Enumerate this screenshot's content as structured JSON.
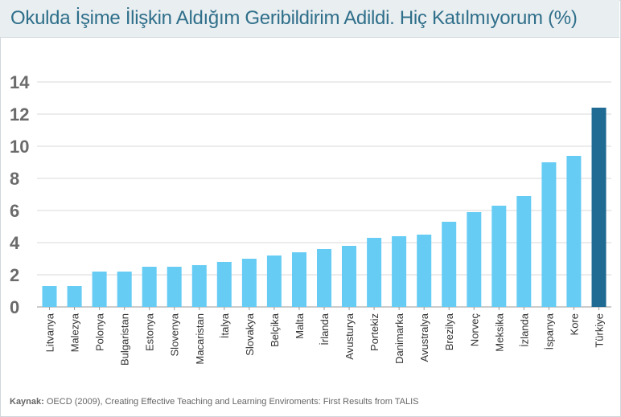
{
  "chart_data": {
    "type": "bar",
    "title": "Okulda İşime İlişkin Aldığım Geribildirim Adildi. Hiç Katılmıyorum (%)",
    "categories": [
      "Litvanya",
      "Malezya",
      "Polonya",
      "Bulgaristan",
      "Estonya",
      "Slovenya",
      "Macaristan",
      "İtalya",
      "Slovakya",
      "Belçika",
      "Malta",
      "İrlanda",
      "Avusturya",
      "Portekiz",
      "Danimarka",
      "Avustralya",
      "Brezilya",
      "Norveç",
      "Meksika",
      "İzlanda",
      "İspanya",
      "Kore",
      "Türkiye"
    ],
    "values": [
      1.3,
      1.3,
      2.2,
      2.2,
      2.5,
      2.5,
      2.6,
      2.8,
      3.0,
      3.2,
      3.4,
      3.6,
      3.8,
      4.3,
      4.4,
      4.5,
      5.3,
      5.9,
      6.3,
      6.9,
      9.0,
      9.4,
      12.4
    ],
    "highlight_category": "Türkiye",
    "ylim": [
      0,
      14
    ],
    "yticks": [
      "0",
      "2",
      "4",
      "6",
      "8",
      "10",
      "12",
      "14"
    ],
    "colors": {
      "bar": "#66ccf4",
      "highlight": "#1f6b93",
      "grid": "#d8d8d8"
    },
    "grid": true,
    "legend": "none"
  },
  "footer": {
    "source_label": "Kaynak:",
    "source_text": " OECD (2009), Creating Effective Teaching and Learning Enviroments: First Results from TALIS"
  }
}
